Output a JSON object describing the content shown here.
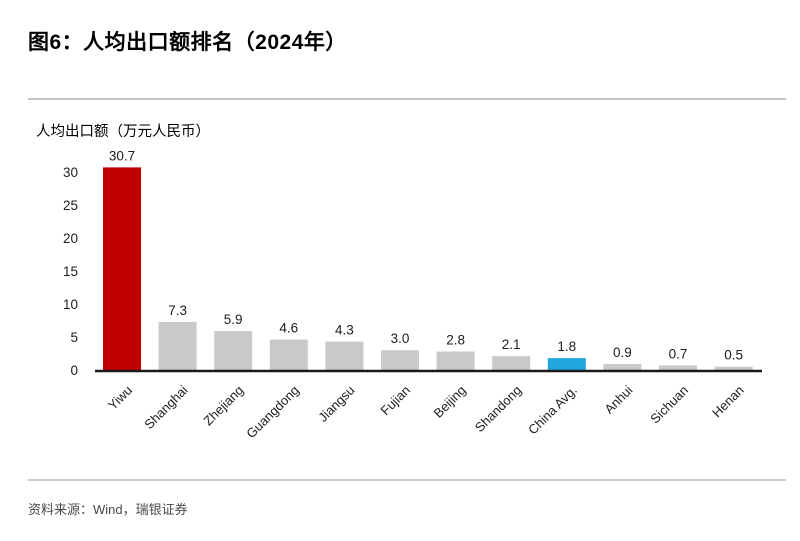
{
  "page": {
    "title": "图6：人均出口额排名（2024年）",
    "footer": {
      "source_label": "资料来源：Wind，瑞银证券"
    }
  },
  "chart_data": {
    "type": "bar",
    "title": "人均出口额排名（2024年）",
    "axis_title": "人均出口额（万元人民币）",
    "xlabel": "",
    "ylabel": "人均出口额（万元人民币）",
    "categories": [
      "Yiwu",
      "Shanghai",
      "Zhejiang",
      "Guangdong",
      "Jiangsu",
      "Fujian",
      "Beijing",
      "Shandong",
      "China Avg.",
      "Anhui",
      "Sichuan",
      "Henan"
    ],
    "values": [
      30.7,
      7.3,
      5.9,
      4.6,
      4.3,
      3.0,
      2.8,
      2.1,
      1.8,
      0.9,
      0.7,
      0.5
    ],
    "data_labels": [
      "30.7",
      "7.3",
      "5.9",
      "4.6",
      "4.3",
      "3.0",
      "2.8",
      "2.1",
      "1.8",
      "0.9",
      "0.7",
      "0.5"
    ],
    "bar_colors": [
      "#c00000",
      "#c9c9c9",
      "#c9c9c9",
      "#c9c9c9",
      "#c9c9c9",
      "#c9c9c9",
      "#c9c9c9",
      "#c9c9c9",
      "#21a6de",
      "#c9c9c9",
      "#c9c9c9",
      "#c9c9c9"
    ],
    "yticks": [
      0,
      5,
      10,
      15,
      20,
      25,
      30
    ],
    "ylim": [
      0,
      30
    ],
    "grid": false,
    "legend": "none",
    "colors": {
      "highlight": "#c00000",
      "average": "#21a6de",
      "default": "#c9c9c9",
      "axis": "#1a1a1a",
      "text": "#202020"
    }
  }
}
